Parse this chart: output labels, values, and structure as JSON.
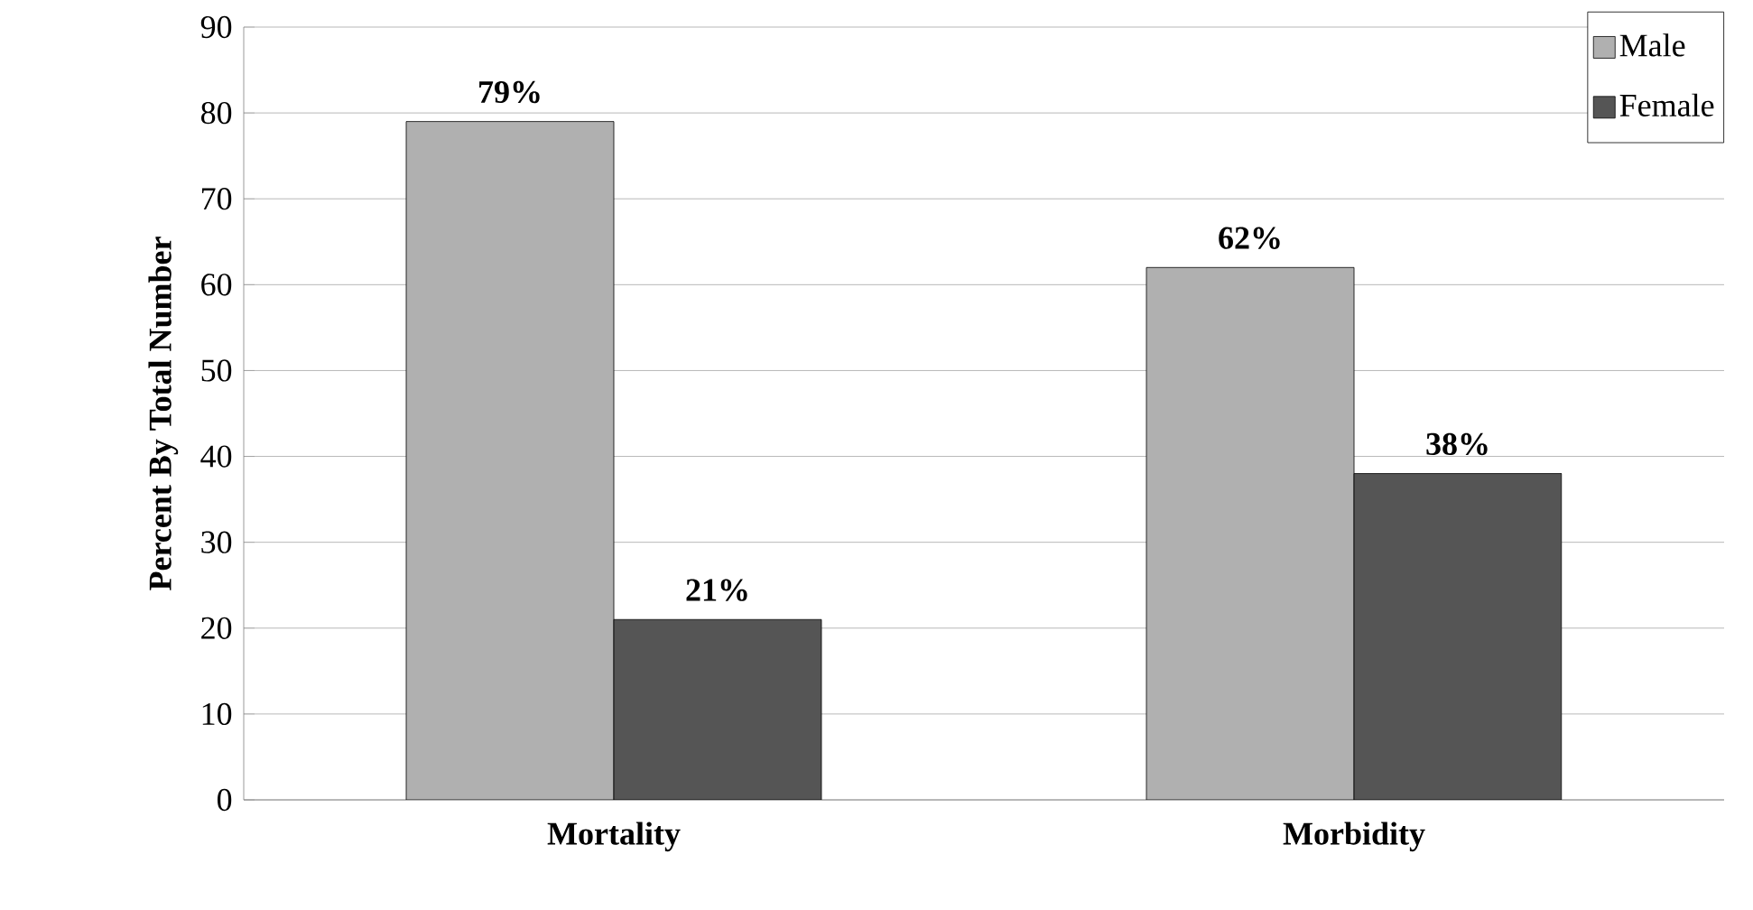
{
  "chart_data": {
    "type": "bar",
    "ylabel": "Percent By Total Number",
    "categories": [
      "Mortality",
      "Morbidity"
    ],
    "series": [
      {
        "name": "Male",
        "color": "#b0b0b0",
        "values": [
          79,
          62
        ],
        "value_labels": [
          "79%",
          "62%"
        ]
      },
      {
        "name": "Female",
        "color": "#555555",
        "values": [
          21,
          38
        ],
        "value_labels": [
          "21%",
          "38%"
        ]
      }
    ],
    "ylim": [
      0,
      90
    ],
    "yticks": [
      0,
      10,
      20,
      30,
      40,
      50,
      60,
      70,
      80,
      90
    ],
    "grid": "y",
    "legend": "top right"
  }
}
